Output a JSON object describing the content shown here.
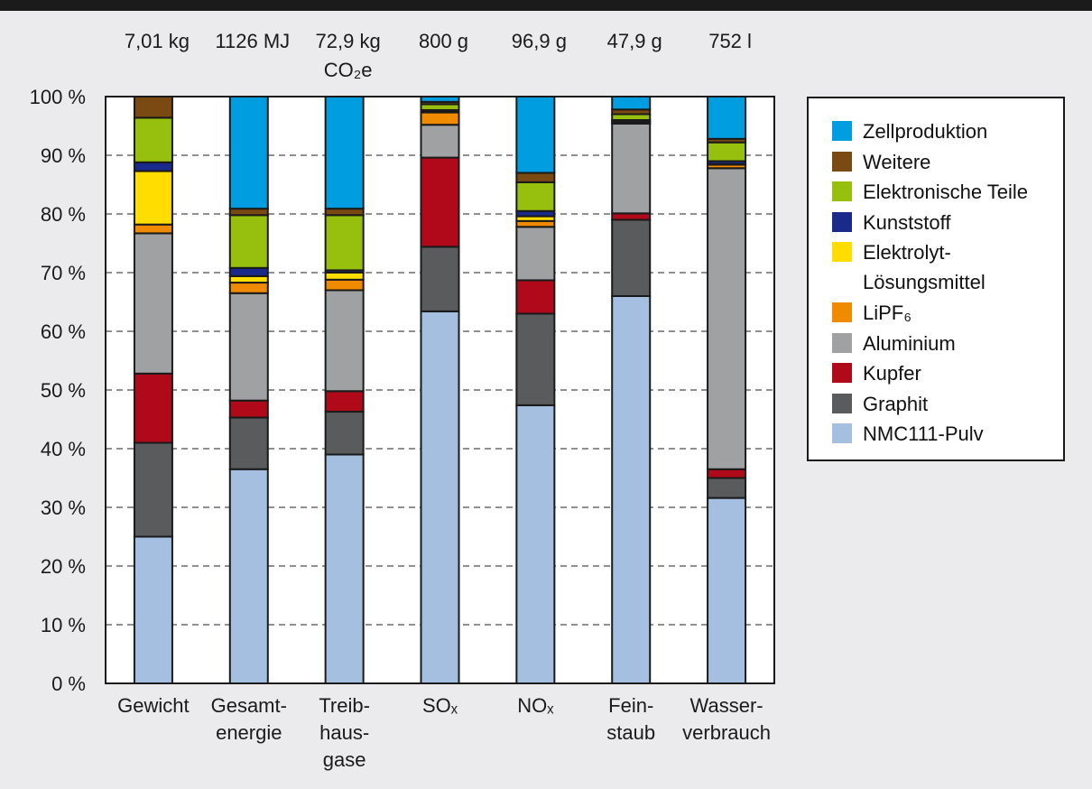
{
  "chart_data": {
    "type": "bar",
    "stacked": true,
    "categories": [
      "Gewicht",
      "Gesamt-\nenergie",
      "Treib-\nhaus-\ngase",
      "SOₓ",
      "NOₓ",
      "Fein-\nstaub",
      "Wasser-\nverbrauch"
    ],
    "totals": [
      "7,01 kg",
      "1126 MJ",
      "72,9 kg\nCO₂e",
      "800 g",
      "96,9 g",
      "47,9 g",
      "752 l"
    ],
    "yticks": [
      "0 %",
      "10 %",
      "20 %",
      "30 %",
      "40 %",
      "50 %",
      "60 %",
      "70 %",
      "80 %",
      "90 %",
      "100 %"
    ],
    "ylim": [
      0,
      100
    ],
    "grid": true,
    "legend_position": "right",
    "series": [
      {
        "name": "NMC111-Pulv",
        "color": "#a4bfe0",
        "values": [
          25,
          36.5,
          39,
          63.4,
          47.4,
          66,
          31.6
        ]
      },
      {
        "name": "Graphit",
        "color": "#5a5b5d",
        "values": [
          16,
          8.8,
          7.3,
          11,
          15.6,
          13,
          3.4
        ]
      },
      {
        "name": "Kupfer",
        "color": "#b00a1a",
        "values": [
          11.8,
          2.9,
          3.5,
          15.2,
          5.7,
          1.1,
          1.5
        ]
      },
      {
        "name": "Aluminium",
        "color": "#a0a1a3",
        "values": [
          23.9,
          18.3,
          17.2,
          5.6,
          9.1,
          15.3,
          51.3
        ]
      },
      {
        "name": "LiPF₆",
        "color": "#f08a00",
        "values": [
          1.5,
          1.8,
          1.8,
          2.1,
          1.0,
          0.1,
          0.6
        ]
      },
      {
        "name": "Elektrolyt-\nLösungsmittel",
        "color": "#ffdd00",
        "values": [
          9.1,
          1.1,
          1.2,
          0.1,
          0.8,
          0.3,
          0.1
        ]
      },
      {
        "name": "Kunststoff",
        "color": "#1a2a8a",
        "values": [
          1.5,
          1.4,
          0.4,
          0.3,
          0.9,
          0.2,
          0.5
        ]
      },
      {
        "name": "Elektronische Teile",
        "color": "#97bf0d",
        "values": [
          7.6,
          9.0,
          9.4,
          1.0,
          4.9,
          1.0,
          3.2
        ]
      },
      {
        "name": "Weitere",
        "color": "#7b4a12",
        "values": [
          3.6,
          1.1,
          1.1,
          0.4,
          1.6,
          0.8,
          0.6
        ]
      },
      {
        "name": "Zellproduktion",
        "color": "#009ee0",
        "values": [
          0,
          19.1,
          19.1,
          0.9,
          13,
          2.2,
          7.2
        ]
      }
    ]
  }
}
